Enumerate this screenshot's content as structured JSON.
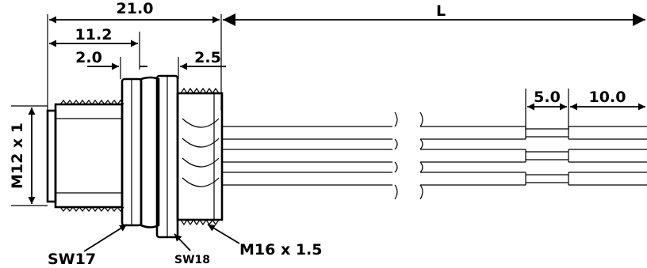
{
  "dimensions": {
    "overall_length": "21.0",
    "thread_length": "11.2",
    "flange_offset": "2.0",
    "rear_thread": "2.5",
    "cable_length": "L",
    "strip_length": "5.0",
    "jacket_length": "10.0",
    "front_thread": "M12 x 1"
  },
  "callouts": {
    "front_nut": "SW17",
    "rear_nut": "SW18",
    "rear_thread": "M16 x 1.5"
  },
  "colors": {
    "line": "#000000",
    "background": "#ffffff"
  }
}
